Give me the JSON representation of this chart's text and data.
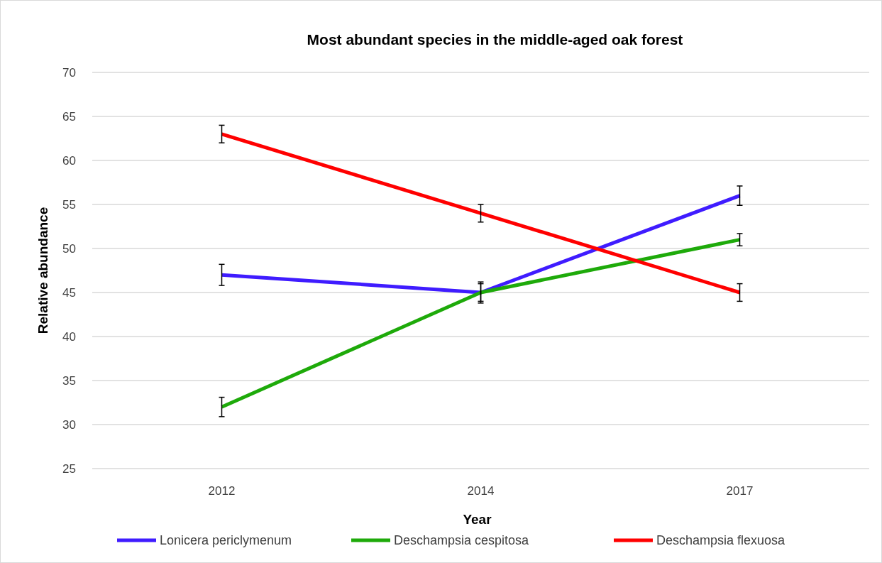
{
  "chart_data": {
    "type": "line",
    "title": "Most abundant species in the middle-aged oak forest",
    "xlabel": "Year",
    "ylabel": "Relative abundance",
    "categories": [
      "2012",
      "2014",
      "2017"
    ],
    "series": [
      {
        "name": "Lonicera periclymenum",
        "color": "#3f1cff",
        "values": [
          47,
          45,
          56
        ],
        "errors": [
          1.2,
          1.2,
          1.1
        ]
      },
      {
        "name": "Deschampsia cespitosa",
        "color": "#1eaa0a",
        "values": [
          32,
          45,
          51
        ],
        "errors": [
          1.1,
          1,
          0.7
        ]
      },
      {
        "name": "Deschampsia flexuosa",
        "color": "#ff0000",
        "values": [
          63,
          54,
          45
        ],
        "errors": [
          1,
          1,
          1
        ]
      }
    ],
    "ylim": [
      25,
      70
    ],
    "yticks": [
      25,
      30,
      35,
      40,
      45,
      50,
      55,
      60,
      65,
      70
    ],
    "grid": "y",
    "legend": "bottom",
    "marker": "none",
    "line_style": "solid"
  }
}
